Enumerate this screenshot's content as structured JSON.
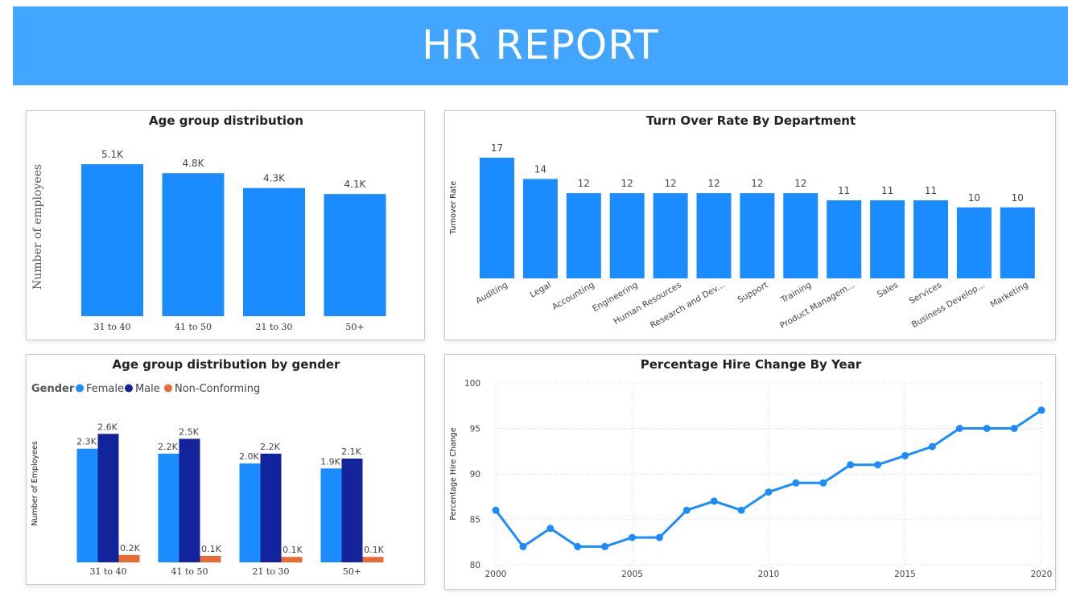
{
  "header": {
    "title": "HR REPORT"
  },
  "colors": {
    "banner": "#42a5ff",
    "bar": "#1a8cff",
    "female": "#1a8cff",
    "male": "#13239b",
    "non_conforming": "#ea6a33",
    "line": "#1a8cff"
  },
  "chart_data": [
    {
      "id": "age-group",
      "type": "bar",
      "title": "Age group distribution",
      "ylabel": "Number of employees",
      "xlabel": "",
      "categories": [
        "31 to 40",
        "41 to 50",
        "21 to 30",
        "50+"
      ],
      "values": [
        5100,
        4800,
        4300,
        4100
      ],
      "value_labels": [
        "5.1K",
        "4.8K",
        "4.3K",
        "4.1K"
      ],
      "ylim": [
        0,
        5400
      ],
      "grid": false
    },
    {
      "id": "turnover",
      "type": "bar",
      "title": "Turn Over Rate By Department",
      "ylabel": "Turnover Rate",
      "xlabel": "",
      "categories": [
        "Auditing",
        "Legal",
        "Accounting",
        "Engineering",
        "Human Resources",
        "Research and Dev...",
        "Support",
        "Training",
        "Product Managem...",
        "Sales",
        "Services",
        "Business Develop...",
        "Marketing"
      ],
      "values": [
        17,
        14,
        12,
        12,
        12,
        12,
        12,
        12,
        11,
        11,
        11,
        10,
        10
      ],
      "value_labels": [
        "17",
        "14",
        "12",
        "12",
        "12",
        "12",
        "12",
        "12",
        "11",
        "11",
        "11",
        "10",
        "10"
      ],
      "ylim": [
        0,
        17
      ],
      "grid": false
    },
    {
      "id": "age-gender",
      "type": "bar",
      "title": "Age group distribution by gender",
      "ylabel": "Number of Employees",
      "xlabel": "",
      "legend_title": "Gender",
      "legend_position": "top-left",
      "categories": [
        "31 to 40",
        "41 to 50",
        "21 to 30",
        "50+"
      ],
      "series": [
        {
          "name": "Female",
          "values": [
            2300,
            2200,
            2000,
            1900
          ],
          "labels": [
            "2.3K",
            "2.2K",
            "2.0K",
            "1.9K"
          ]
        },
        {
          "name": "Male",
          "values": [
            2600,
            2500,
            2200,
            2100
          ],
          "labels": [
            "2.6K",
            "2.5K",
            "2.2K",
            "2.1K"
          ]
        },
        {
          "name": "Non-Conforming",
          "values": [
            150,
            130,
            110,
            110
          ],
          "labels": [
            "0.2K",
            "0.1K",
            "0.1K",
            "0.1K"
          ]
        }
      ],
      "ylim": [
        0,
        2800
      ],
      "grid": false
    },
    {
      "id": "hire-change",
      "type": "line",
      "title": "Percentage Hire Change By Year",
      "ylabel": "Percentage Hire Change",
      "xlabel": "",
      "x": [
        2000,
        2001,
        2002,
        2003,
        2004,
        2005,
        2006,
        2007,
        2008,
        2009,
        2010,
        2011,
        2012,
        2013,
        2014,
        2015,
        2016,
        2017,
        2018,
        2019,
        2020
      ],
      "y": [
        86,
        82,
        84,
        82,
        82,
        83,
        83,
        86,
        87,
        86,
        88,
        89,
        89,
        91,
        91,
        92,
        93,
        95,
        95,
        95,
        97
      ],
      "xticks": [
        2000,
        2005,
        2010,
        2015,
        2020
      ],
      "yticks": [
        80,
        85,
        90,
        95,
        100
      ],
      "xlim": [
        2000,
        2020
      ],
      "ylim": [
        80,
        100
      ],
      "grid": true
    }
  ]
}
